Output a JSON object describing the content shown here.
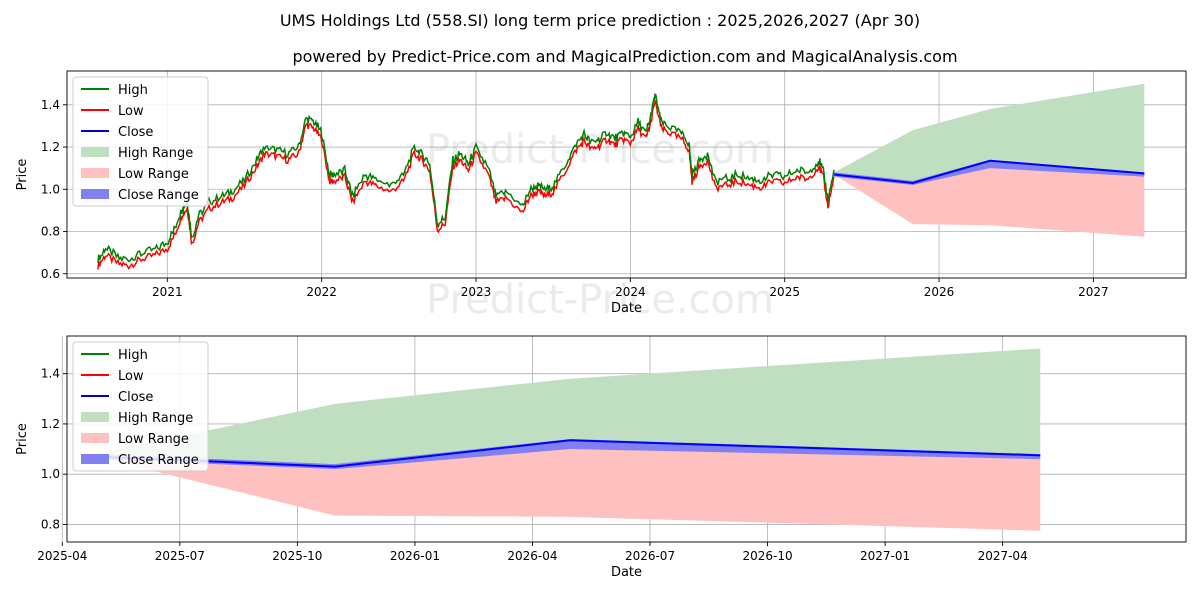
{
  "title": "UMS Holdings Ltd (558.SI) long term price prediction : 2025,2026,2027 (Apr 30)",
  "subtitle": "powered by Predict-Price.com and MagicalPrediction.com and MagicalAnalysis.com",
  "watermark": "Predict-Price.com",
  "colors": {
    "high": "#008000",
    "low": "#ff0000",
    "close": "#0000ff",
    "high_range": "#c0dfc0",
    "low_range": "#ffc0c0",
    "close_range": "#8080f0",
    "grid": "#b0b0b0",
    "watermark": "#ebebeb"
  },
  "legend": {
    "items": [
      {
        "label": "High",
        "kind": "line",
        "color": "#008000"
      },
      {
        "label": "Low",
        "kind": "line",
        "color": "#ff0000"
      },
      {
        "label": "Close",
        "kind": "line",
        "color": "#0000cc"
      },
      {
        "label": "High Range",
        "kind": "patch",
        "color": "#c0dfc0"
      },
      {
        "label": "Low Range",
        "kind": "patch",
        "color": "#ffc0c0"
      },
      {
        "label": "Close Range",
        "kind": "patch",
        "color": "#8080f0"
      }
    ]
  },
  "chart_data": [
    {
      "type": "line",
      "name": "history-and-forecast",
      "xlabel": "Date",
      "ylabel": "Price",
      "xlim": [
        2020.35,
        2027.6
      ],
      "ylim": [
        0.58,
        1.56
      ],
      "xticks": [
        {
          "v": 2021.0,
          "label": "2021"
        },
        {
          "v": 2022.0,
          "label": "2022"
        },
        {
          "v": 2023.0,
          "label": "2023"
        },
        {
          "v": 2024.0,
          "label": "2024"
        },
        {
          "v": 2025.0,
          "label": "2025"
        },
        {
          "v": 2026.0,
          "label": "2026"
        },
        {
          "v": 2027.0,
          "label": "2027"
        }
      ],
      "yticks": [
        {
          "v": 0.6,
          "label": "0.6"
        },
        {
          "v": 0.8,
          "label": "0.8"
        },
        {
          "v": 1.0,
          "label": "1.0"
        },
        {
          "v": 1.2,
          "label": "1.2"
        },
        {
          "v": 1.4,
          "label": "1.4"
        }
      ],
      "history": {
        "x": [
          2020.55,
          2020.6,
          2020.68,
          2020.75,
          2020.83,
          2020.92,
          2021.0,
          2021.05,
          2021.1,
          2021.13,
          2021.16,
          2021.2,
          2021.27,
          2021.35,
          2021.42,
          2021.5,
          2021.58,
          2021.63,
          2021.7,
          2021.78,
          2021.85,
          2021.9,
          2021.95,
          2022.0,
          2022.05,
          2022.08,
          2022.15,
          2022.2,
          2022.28,
          2022.35,
          2022.45,
          2022.53,
          2022.6,
          2022.65,
          2022.7,
          2022.75,
          2022.8,
          2022.85,
          2022.9,
          2022.95,
          2023.0,
          2023.08,
          2023.13,
          2023.2,
          2023.3,
          2023.35,
          2023.4,
          2023.45,
          2023.5,
          2023.58,
          2023.65,
          2023.7,
          2023.75,
          2023.8,
          2023.85,
          2023.9,
          2023.95,
          2024.0,
          2024.05,
          2024.1,
          2024.13,
          2024.16,
          2024.2,
          2024.25,
          2024.33,
          2024.38,
          2024.4,
          2024.45,
          2024.5,
          2024.55,
          2024.62,
          2024.7,
          2024.78,
          2024.85,
          2024.92,
          2025.0,
          2025.08,
          2025.15,
          2025.22,
          2025.25,
          2025.28,
          2025.32
        ],
        "close": [
          0.65,
          0.7,
          0.66,
          0.65,
          0.68,
          0.7,
          0.73,
          0.8,
          0.9,
          0.92,
          0.75,
          0.85,
          0.92,
          0.95,
          0.97,
          1.03,
          1.12,
          1.18,
          1.17,
          1.15,
          1.18,
          1.32,
          1.3,
          1.25,
          1.05,
          1.05,
          1.07,
          0.95,
          1.05,
          1.03,
          1.0,
          1.05,
          1.18,
          1.15,
          1.1,
          0.82,
          0.85,
          1.12,
          1.15,
          1.1,
          1.18,
          1.08,
          0.95,
          0.97,
          0.9,
          0.98,
          1.0,
          0.98,
          1.0,
          1.1,
          1.2,
          1.24,
          1.2,
          1.22,
          1.25,
          1.22,
          1.25,
          1.23,
          1.3,
          1.25,
          1.32,
          1.43,
          1.3,
          1.28,
          1.25,
          1.2,
          1.05,
          1.12,
          1.15,
          1.02,
          1.03,
          1.05,
          1.03,
          1.02,
          1.05,
          1.04,
          1.07,
          1.06,
          1.12,
          1.07,
          0.93,
          1.07
        ]
      },
      "forecast": {
        "x": [
          2025.32,
          2025.83,
          2026.33,
          2027.33
        ],
        "close": [
          1.07,
          1.03,
          1.135,
          1.075
        ],
        "close_low": [
          1.06,
          1.02,
          1.1,
          1.06
        ],
        "close_high": [
          1.08,
          1.04,
          1.14,
          1.08
        ],
        "high_range": [
          1.08,
          1.28,
          1.38,
          1.5
        ],
        "low_range": [
          1.07,
          0.835,
          0.83,
          0.775
        ]
      }
    },
    {
      "type": "line",
      "name": "forecast-zoom",
      "xlabel": "Date",
      "ylabel": "Price",
      "xlim": [
        2025.26,
        2027.64
      ],
      "ylim": [
        0.73,
        1.55
      ],
      "xticks": [
        {
          "v": 2025.25,
          "label": "2025-04"
        },
        {
          "v": 2025.5,
          "label": "2025-07"
        },
        {
          "v": 2025.75,
          "label": "2025-10"
        },
        {
          "v": 2026.0,
          "label": "2026-01"
        },
        {
          "v": 2026.25,
          "label": "2026-04"
        },
        {
          "v": 2026.5,
          "label": "2026-07"
        },
        {
          "v": 2026.75,
          "label": "2026-10"
        },
        {
          "v": 2027.0,
          "label": "2027-01"
        },
        {
          "v": 2027.25,
          "label": "2027-04"
        }
      ],
      "yticks": [
        {
          "v": 0.8,
          "label": "0.8"
        },
        {
          "v": 1.0,
          "label": "1.0"
        },
        {
          "v": 1.2,
          "label": "1.2"
        },
        {
          "v": 1.4,
          "label": "1.4"
        }
      ],
      "forecast": {
        "x": [
          2025.32,
          2025.83,
          2026.33,
          2027.33
        ],
        "close": [
          1.07,
          1.03,
          1.135,
          1.075
        ],
        "close_low": [
          1.06,
          1.02,
          1.1,
          1.06
        ],
        "close_high": [
          1.08,
          1.04,
          1.14,
          1.08
        ],
        "high_range": [
          1.08,
          1.28,
          1.38,
          1.5
        ],
        "low_range": [
          1.07,
          0.835,
          0.83,
          0.775
        ]
      }
    }
  ]
}
